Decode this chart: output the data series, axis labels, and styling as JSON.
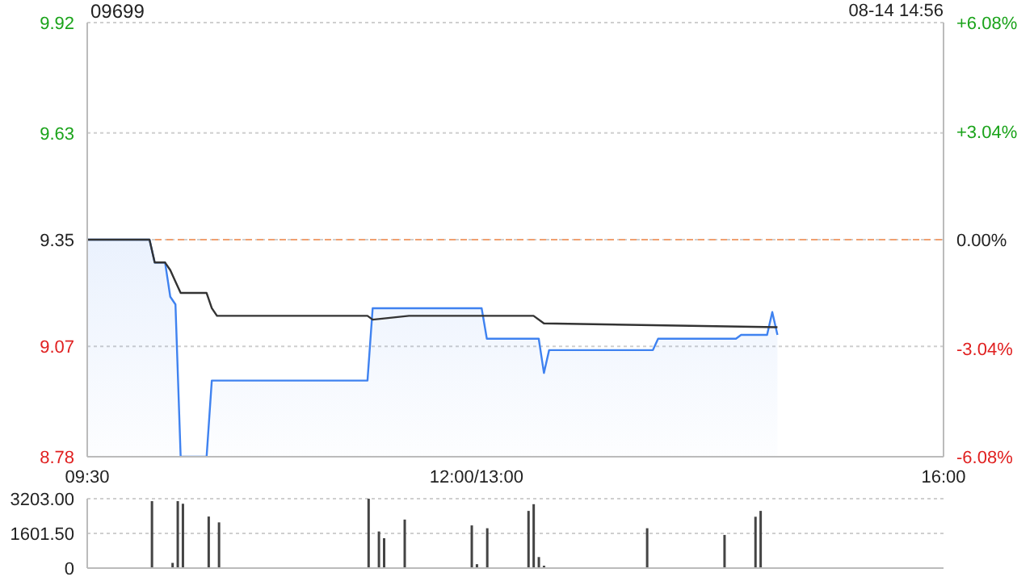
{
  "chart_data": [
    {
      "type": "line",
      "title": "09699",
      "annotations": [
        "08-14 14:56"
      ],
      "categories": [
        "09:30",
        null,
        null,
        null,
        null,
        null,
        null,
        null,
        null,
        null,
        null,
        null,
        null,
        null,
        null,
        null,
        null,
        null,
        null,
        null,
        null,
        null,
        null,
        null,
        null,
        null,
        null,
        null,
        null,
        null,
        null,
        null,
        null,
        null,
        null,
        null,
        null,
        null,
        null,
        null,
        null,
        null,
        null,
        null,
        null,
        null,
        null,
        null,
        null,
        null,
        null,
        null,
        null,
        null,
        null,
        null,
        null,
        null,
        null,
        null,
        null,
        null,
        null,
        null,
        null,
        null,
        null,
        null,
        null,
        null,
        null,
        null,
        null,
        null,
        null,
        "12:00/13:00",
        null,
        null,
        null,
        null,
        null,
        null,
        null,
        null,
        null,
        null,
        null,
        null,
        null,
        null,
        null,
        null,
        null,
        null,
        null,
        null,
        null,
        null,
        null,
        null,
        null,
        null,
        null,
        null,
        null,
        null,
        null,
        null,
        null,
        null,
        null,
        null,
        null,
        null,
        null,
        null,
        null,
        null,
        null,
        null,
        null,
        null,
        null,
        null,
        null,
        null,
        null,
        null,
        null,
        null,
        null,
        null,
        null,
        null,
        null,
        null,
        null,
        null,
        null,
        null,
        null,
        null,
        null,
        null,
        null,
        null,
        null,
        null,
        null,
        null,
        null,
        null,
        null,
        null,
        null,
        null,
        null,
        null,
        null,
        null,
        null,
        null,
        null,
        null,
        null,
        "16:00"
      ],
      "series": [
        {
          "type": "area",
          "color": "#3f82f0",
          "values": [
            9.35,
            null,
            null,
            null,
            null,
            null,
            null,
            null,
            null,
            null,
            null,
            null,
            9.35,
            9.29,
            null,
            9.29,
            9.2,
            9.18,
            8.78,
            null,
            null,
            null,
            null,
            8.78,
            8.98,
            null,
            null,
            null,
            null,
            null,
            null,
            null,
            null,
            null,
            null,
            null,
            null,
            null,
            null,
            null,
            null,
            null,
            null,
            null,
            null,
            null,
            null,
            null,
            null,
            null,
            null,
            null,
            null,
            null,
            8.98,
            9.17,
            null,
            null,
            null,
            null,
            null,
            null,
            null,
            null,
            null,
            null,
            null,
            null,
            null,
            null,
            null,
            null,
            null,
            null,
            null,
            null,
            9.17,
            9.09,
            null,
            null,
            null,
            null,
            null,
            null,
            null,
            null,
            null,
            9.09,
            9.0,
            9.06,
            null,
            null,
            null,
            null,
            null,
            null,
            null,
            null,
            null,
            null,
            null,
            null,
            null,
            null,
            null,
            null,
            null,
            null,
            null,
            9.06,
            9.09,
            null,
            null,
            null,
            null,
            null,
            null,
            null,
            null,
            null,
            null,
            null,
            null,
            null,
            null,
            9.09,
            9.1,
            null,
            null,
            null,
            null,
            9.1,
            9.16,
            9.1,
            null,
            null,
            null,
            null,
            null,
            null,
            null,
            null,
            null,
            null,
            null,
            null,
            null,
            null,
            null,
            null,
            null,
            null,
            null,
            null,
            null,
            null,
            null,
            null,
            null,
            null,
            null,
            null,
            null,
            null,
            null,
            null
          ]
        },
        {
          "type": "line",
          "color": "#333333",
          "values": [
            9.35,
            null,
            null,
            null,
            null,
            null,
            null,
            null,
            null,
            null,
            null,
            null,
            9.35,
            9.29,
            null,
            9.29,
            9.27,
            9.24,
            9.21,
            null,
            null,
            null,
            null,
            9.21,
            9.17,
            9.15,
            null,
            null,
            null,
            null,
            null,
            null,
            null,
            null,
            null,
            null,
            null,
            null,
            null,
            null,
            null,
            null,
            null,
            null,
            null,
            null,
            null,
            null,
            null,
            null,
            null,
            null,
            null,
            null,
            9.15,
            9.14,
            null,
            null,
            null,
            null,
            null,
            null,
            9.15,
            null,
            null,
            null,
            null,
            null,
            null,
            null,
            null,
            null,
            null,
            null,
            null,
            null,
            null,
            null,
            null,
            null,
            null,
            null,
            null,
            null,
            null,
            null,
            9.15,
            null,
            9.13,
            null,
            null,
            null,
            null,
            null,
            null,
            null,
            null,
            null,
            null,
            null,
            null,
            null,
            null,
            null,
            null,
            null,
            null,
            null,
            null,
            null,
            null,
            null,
            null,
            null,
            null,
            null,
            null,
            null,
            null,
            null,
            null,
            null,
            null,
            null,
            null,
            null,
            null,
            null,
            null,
            null,
            null,
            null,
            null,
            9.12,
            null,
            null,
            null,
            null,
            null,
            null,
            null,
            null,
            null,
            null,
            null,
            null,
            null,
            null,
            null,
            null,
            null,
            null,
            null,
            null,
            null,
            null,
            null,
            null,
            null,
            null,
            null,
            null,
            null,
            null,
            null,
            null
          ]
        }
      ],
      "ylim": [
        8.78,
        9.92
      ],
      "yticks": [
        8.78,
        9.07,
        9.35,
        9.63,
        9.92
      ],
      "y2lim": [
        -6.08,
        6.08
      ],
      "y2ticks": [
        {
          "value": -6.08,
          "label": "-6.08%"
        },
        {
          "value": -3.04,
          "label": "-3.04%"
        },
        {
          "value": 0,
          "label": "0.00%"
        },
        {
          "value": 3.04,
          "label": "+3.04%"
        },
        {
          "value": 6.08,
          "label": "+6.08%"
        }
      ],
      "ref_lines": [
        {
          "axis": "y",
          "value": 9.35,
          "color": "#f0a070",
          "line_style": "dashed"
        }
      ],
      "grid": "y"
    },
    {
      "type": "bar",
      "color": "#444444",
      "categories": [
        null,
        null,
        null,
        null,
        null,
        null,
        null,
        null,
        null,
        null,
        null,
        null,
        null,
        null,
        null,
        null,
        null,
        null,
        null,
        null,
        null,
        null,
        null,
        null,
        null,
        null,
        null,
        null,
        null,
        null,
        null,
        null,
        null,
        null,
        null,
        null,
        null,
        null,
        null,
        null,
        null,
        null,
        null,
        null,
        null,
        null,
        null,
        null,
        null,
        null,
        null,
        null,
        null,
        null,
        null,
        null,
        null,
        null,
        null,
        null,
        null,
        null,
        null,
        null,
        null,
        null,
        null,
        null,
        null,
        null,
        null,
        null,
        null,
        null,
        null,
        null,
        null,
        null,
        null,
        null,
        null,
        null,
        null,
        null,
        null,
        null,
        null,
        null,
        null,
        null,
        null,
        null,
        null,
        null,
        null,
        null,
        null,
        null,
        null,
        null,
        null,
        null,
        null,
        null,
        null,
        null,
        null,
        null,
        null,
        null,
        null,
        null,
        null,
        null,
        null,
        null,
        null,
        null,
        null,
        null,
        null,
        null,
        null,
        null,
        null,
        null,
        null,
        null,
        null,
        null,
        null,
        null,
        null,
        null,
        null,
        null,
        null,
        null,
        null,
        null,
        null,
        null,
        null,
        null,
        null,
        null,
        null,
        null,
        null,
        null,
        null,
        null,
        null,
        null,
        null,
        null,
        null,
        null,
        null,
        null,
        null,
        null,
        null,
        null,
        null,
        null
      ],
      "values": [
        null,
        null,
        null,
        null,
        null,
        null,
        null,
        null,
        null,
        null,
        null,
        null,
        3090,
        null,
        null,
        null,
        240,
        3090,
        2970,
        null,
        null,
        null,
        null,
        2380,
        null,
        2110,
        null,
        null,
        null,
        null,
        null,
        null,
        null,
        null,
        null,
        null,
        null,
        null,
        null,
        null,
        null,
        null,
        null,
        null,
        null,
        null,
        null,
        null,
        null,
        null,
        null,
        null,
        null,
        null,
        3200,
        null,
        1690,
        1380,
        null,
        null,
        null,
        2240,
        null,
        null,
        null,
        null,
        null,
        null,
        null,
        null,
        null,
        null,
        null,
        null,
        1970,
        180,
        null,
        1840,
        null,
        null,
        null,
        null,
        null,
        null,
        null,
        2640,
        2950,
        510,
        110,
        null,
        null,
        null,
        null,
        null,
        null,
        null,
        null,
        null,
        null,
        null,
        null,
        null,
        null,
        null,
        null,
        null,
        null,
        null,
        1840,
        null,
        null,
        null,
        null,
        null,
        null,
        null,
        null,
        null,
        null,
        null,
        null,
        null,
        null,
        1530,
        null,
        null,
        null,
        null,
        null,
        2370,
        2640,
        null,
        null,
        null,
        null,
        null,
        null,
        null,
        null,
        null,
        null,
        null,
        null,
        null,
        null,
        null,
        null,
        null,
        null,
        null,
        null,
        null,
        null,
        null,
        null,
        null,
        null,
        null,
        null,
        null,
        null,
        null,
        null,
        null,
        null,
        null
      ],
      "ylim": [
        0,
        3203
      ],
      "yticks": [
        0,
        {
          "value": 1601.5,
          "label": "1601.50"
        },
        {
          "value": 3203,
          "label": "3203.00"
        }
      ],
      "tick_labels": "y",
      "grid": "y"
    }
  ]
}
